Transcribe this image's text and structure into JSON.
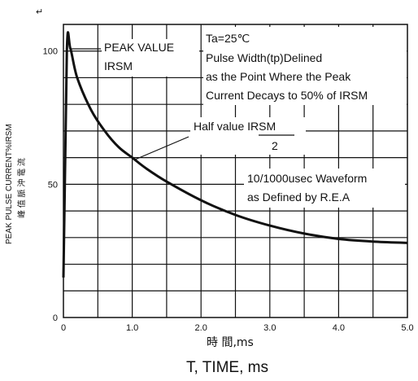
{
  "corner_mark": "↵",
  "chart_data": {
    "type": "line",
    "xlabel_cn": "時 間,ms",
    "xlabel": "T, TIME, ms",
    "ylabel": "PEAK PULSE CURRENT%IRSM",
    "ylabel_cn": "峰 值 脈 沖 電 流",
    "xlim": [
      0,
      5
    ],
    "ylim": [
      0,
      110
    ],
    "x_ticks": [
      "0",
      "1.0",
      "2.0",
      "3.0",
      "4.0",
      "5.0"
    ],
    "y_ticks": [
      "0",
      "50",
      "100"
    ],
    "grid": true,
    "series": [
      {
        "x": [
          0,
          0.05,
          0.1,
          0.2,
          0.4,
          0.6,
          0.8,
          1.0,
          1.2,
          1.5,
          2.0,
          2.5,
          3.0,
          3.5,
          4.0,
          4.5,
          5.0
        ],
        "values": [
          15,
          100,
          101,
          90,
          78,
          70,
          64,
          60,
          56,
          51,
          44,
          38.5,
          34.5,
          31.5,
          29.5,
          28.5,
          28
        ]
      }
    ],
    "annotations": {
      "peak_line1": "PEAK VALUE",
      "peak_line2": "IRSM",
      "cond_line1": "Ta=25℃",
      "cond_line2": "Pulse Width(tp)Delined",
      "cond_line3": "as the Point Where the Peak",
      "cond_line4": "Current Decays to 50% of IRSM",
      "half_num": "Half value IRSM",
      "half_den": "2",
      "wave_line1": "10/1000usec Waveform",
      "wave_line2": "as Defined by R.E.A"
    }
  }
}
